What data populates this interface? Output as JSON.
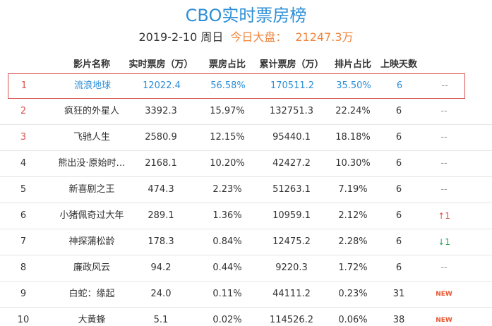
{
  "title": "CBO实时票房榜",
  "subtitle": {
    "date": "2019-2-10 周日",
    "market_label": "今日大盘：",
    "market_value": "21247.3万"
  },
  "columns": [
    "影片名称",
    "实时票房（万）",
    "票房占比",
    "累计票房（万）",
    "排片占比",
    "上映天数"
  ],
  "rows": [
    {
      "rank": "1",
      "name": "流浪地球",
      "box": "12022.4",
      "pct": "56.58%",
      "total": "170511.2",
      "screen": "35.50%",
      "days": "6",
      "trend": "--"
    },
    {
      "rank": "2",
      "name": "疯狂的外星人",
      "box": "3392.3",
      "pct": "15.97%",
      "total": "132751.3",
      "screen": "22.24%",
      "days": "6",
      "trend": "--"
    },
    {
      "rank": "3",
      "name": "飞驰人生",
      "box": "2580.9",
      "pct": "12.15%",
      "total": "95440.1",
      "screen": "18.18%",
      "days": "6",
      "trend": "--"
    },
    {
      "rank": "4",
      "name": "熊出没·原始时…",
      "box": "2168.1",
      "pct": "10.20%",
      "total": "42427.2",
      "screen": "10.30%",
      "days": "6",
      "trend": "--"
    },
    {
      "rank": "5",
      "name": "新喜剧之王",
      "box": "474.3",
      "pct": "2.23%",
      "total": "51263.1",
      "screen": "7.19%",
      "days": "6",
      "trend": "--"
    },
    {
      "rank": "6",
      "name": "小猪佩奇过大年",
      "box": "289.1",
      "pct": "1.36%",
      "total": "10959.1",
      "screen": "2.12%",
      "days": "6",
      "trend": "↑1"
    },
    {
      "rank": "7",
      "name": "神探蒲松龄",
      "box": "178.3",
      "pct": "0.84%",
      "total": "12475.2",
      "screen": "2.28%",
      "days": "6",
      "trend": "↓1"
    },
    {
      "rank": "8",
      "name": "廉政风云",
      "box": "94.2",
      "pct": "0.44%",
      "total": "9220.3",
      "screen": "1.72%",
      "days": "6",
      "trend": "--"
    },
    {
      "rank": "9",
      "name": "白蛇：缘起",
      "box": "24.0",
      "pct": "0.11%",
      "total": "44111.2",
      "screen": "0.23%",
      "days": "31",
      "trend": "NEW"
    },
    {
      "rank": "10",
      "name": "大黄蜂",
      "box": "5.1",
      "pct": "0.02%",
      "total": "114526.2",
      "screen": "0.06%",
      "days": "38",
      "trend": "NEW"
    }
  ],
  "colors": {
    "accent": "#2d8fd8",
    "highlight_border": "#d9534f",
    "market": "#f0843c"
  }
}
